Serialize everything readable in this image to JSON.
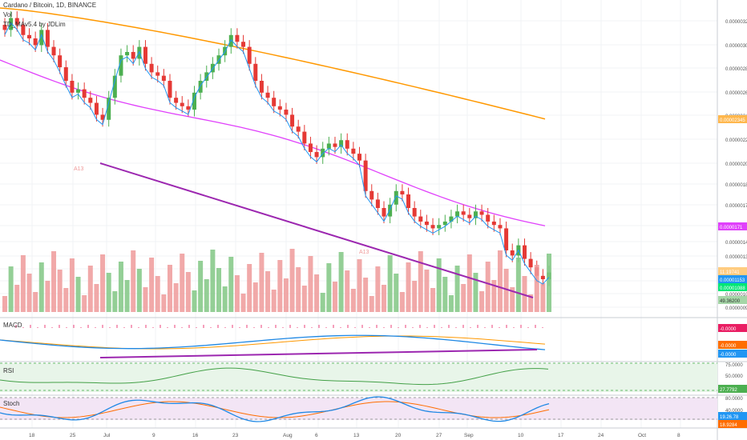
{
  "header": {
    "symbol": "Cardano / Bitcoin, 1D, BINANCE",
    "vol_label": "Vol",
    "indicator_label": "TD_MAv5.4 by JDLim"
  },
  "panes": {
    "macd_label": "MACD",
    "rsi_label": "RSI",
    "stoch_label": "Stoch"
  },
  "price_axis": {
    "ticks": [
      "0.00000320",
      "0.00000300",
      "0.00000280",
      "0.00000260",
      "0.00000240",
      "0.00000220",
      "0.00000200",
      "0.00000185",
      "0.00000170",
      "0.00000155",
      "0.00000140",
      "0.00000130",
      "0.00000120",
      "0.00000110",
      "0.00000100",
      "0.00000090"
    ],
    "badges": [
      {
        "text": "0.00002345",
        "color": "#ffb74d",
        "fg": "#ffffff"
      },
      {
        "text": "0.0000171",
        "color": "#e040fb",
        "fg": "#ffffff"
      },
      {
        "text": "11.19741",
        "color": "#ffcc80",
        "fg": "#ffffff"
      },
      {
        "text": "0.00001153",
        "color": "#2196f3",
        "fg": "#ffffff"
      },
      {
        "text": "0.00001088",
        "color": "#00e676",
        "fg": "#ffffff"
      },
      {
        "text": "49.36200",
        "color": "#a5d6a7",
        "fg": "#333333"
      }
    ]
  },
  "macd_axis": {
    "badges": [
      {
        "text": "-0.0000",
        "color": "#e91e63"
      },
      {
        "text": "-0.0000",
        "color": "#ff6d00"
      },
      {
        "text": "-0.0000",
        "color": "#2196f3"
      }
    ]
  },
  "rsi_axis": {
    "ticks": [
      "75.0000",
      "50.0000",
      "25.0000"
    ],
    "badges": [
      {
        "text": "27.7792",
        "color": "#4caf50"
      }
    ]
  },
  "stoch_axis": {
    "ticks": [
      "80.0000",
      "40.0000",
      "0.0000"
    ],
    "badges": [
      {
        "text": "19.26.78",
        "color": "#2196f3"
      },
      {
        "text": "18.9284",
        "color": "#ff6d00"
      }
    ]
  },
  "time_axis": {
    "labels": [
      "18",
      "25",
      "Jul",
      "9",
      "16",
      "23",
      "Aug",
      "6",
      "13",
      "20",
      "27",
      "Sep",
      "10",
      "17",
      "24",
      "Oct",
      "8"
    ]
  },
  "td_annotations": {
    "low": "A13",
    "low2": "A13"
  },
  "colors": {
    "up": "#26a69a",
    "down": "#ef5350",
    "candle_up": "#4caf50",
    "candle_down": "#e53935",
    "ma_orange": "#ff9800",
    "ma_magenta": "#e040fb",
    "ma_blue": "#2196f3",
    "trendline": "#9c27b0",
    "vol_up": "#81c784",
    "vol_down": "#ef9a9a"
  },
  "chart_data": {
    "type": "candlestick",
    "title": "Cardano / Bitcoin, 1D, BINANCE",
    "ohlc_close_approx": [
      2.55,
      2.62,
      2.58,
      2.52,
      2.5,
      2.46,
      2.55,
      2.45,
      2.4,
      2.33,
      2.25,
      2.18,
      2.2,
      2.15,
      2.12,
      2.05,
      2.02,
      2.15,
      2.28,
      2.4,
      2.42,
      2.38,
      2.45,
      2.35,
      2.3,
      2.28,
      2.25,
      2.15,
      2.12,
      2.1,
      2.08,
      2.18,
      2.25,
      2.3,
      2.35,
      2.4,
      2.45,
      2.52,
      2.48,
      2.45,
      2.35,
      2.25,
      2.18,
      2.15,
      2.1,
      2.08,
      2.05,
      1.98,
      1.95,
      1.88,
      1.83,
      1.8,
      1.85,
      1.88,
      1.86,
      1.9,
      1.85,
      1.82,
      1.78,
      1.6,
      1.55,
      1.5,
      1.45,
      1.52,
      1.6,
      1.58,
      1.5,
      1.45,
      1.42,
      1.4,
      1.38,
      1.4,
      1.42,
      1.45,
      1.48,
      1.46,
      1.44,
      1.48,
      1.46,
      1.42,
      1.4,
      1.38,
      1.25,
      1.22,
      1.28,
      1.2,
      1.15,
      1.1,
      1.08,
      1.12
    ],
    "volume_up": "green bars (up days)",
    "indicators": [
      "MACD",
      "RSI",
      "Stoch"
    ]
  }
}
